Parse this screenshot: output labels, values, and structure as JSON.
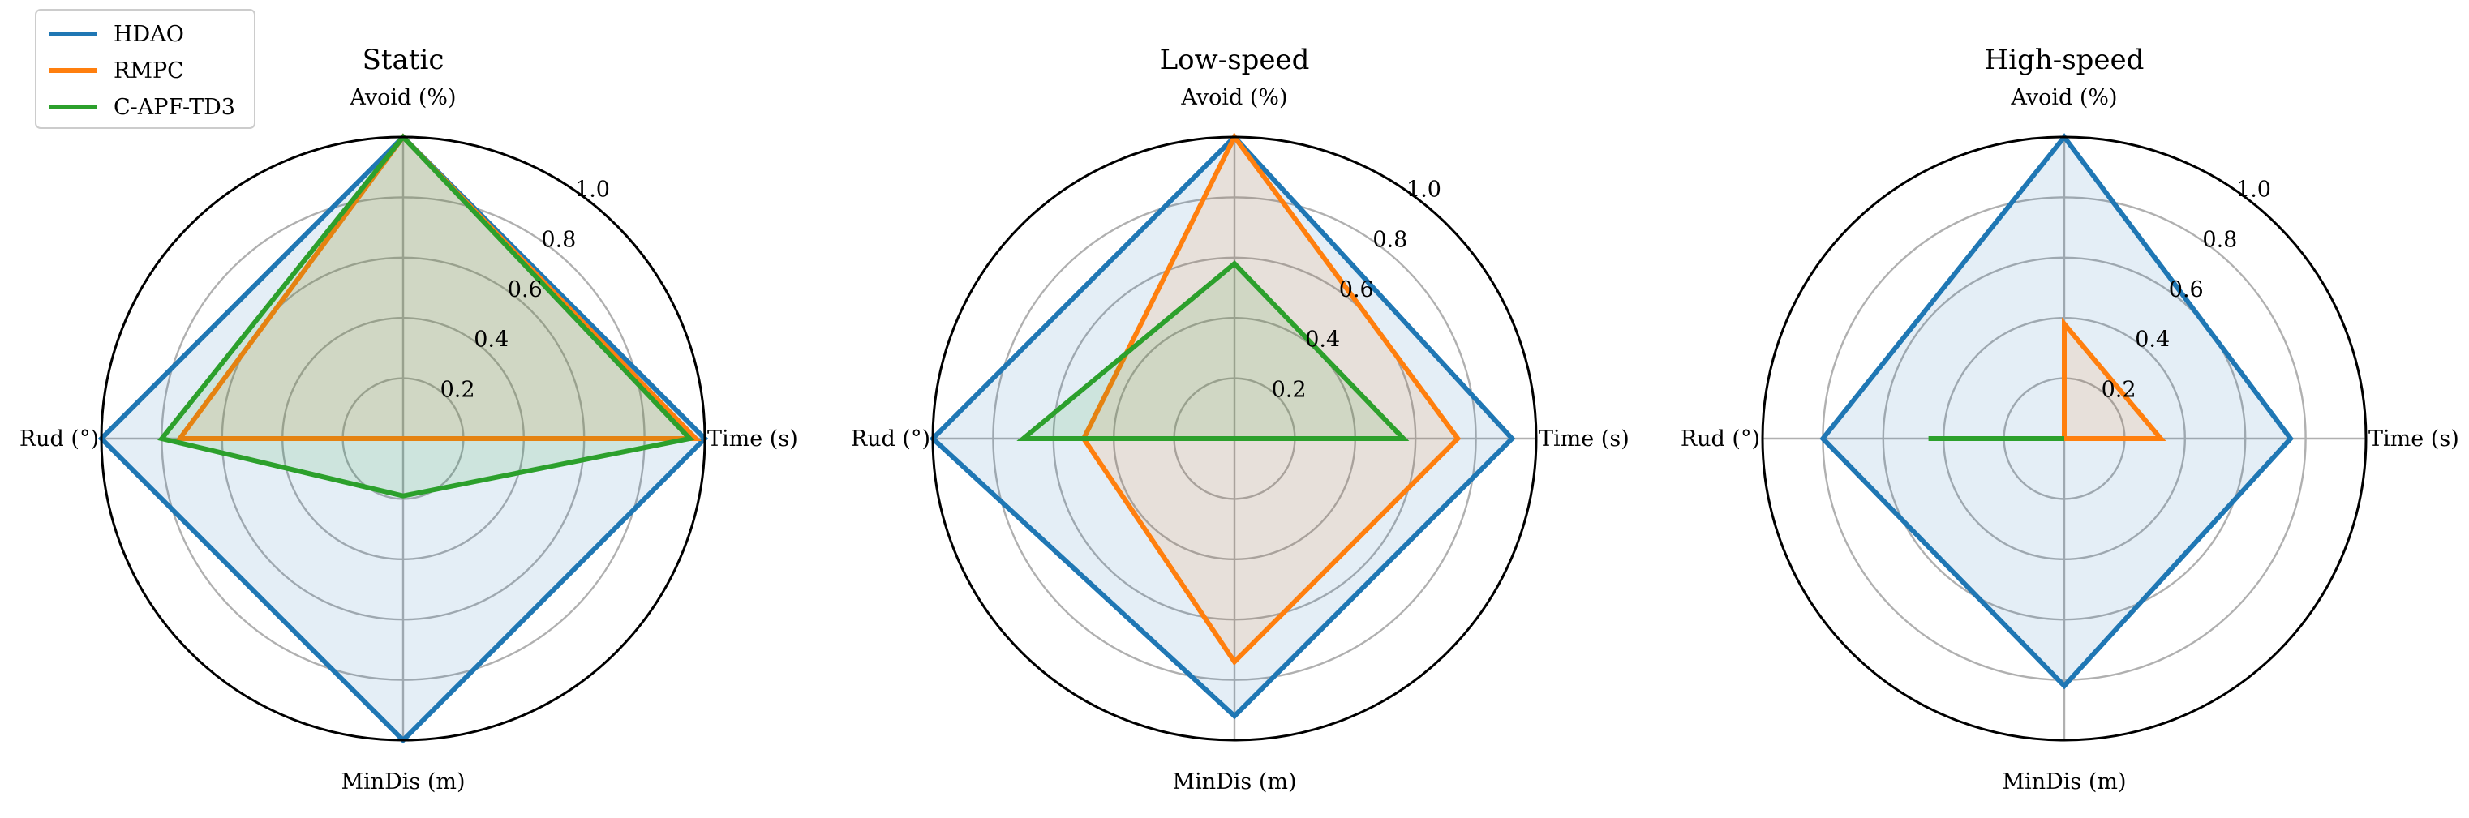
{
  "chart_data": {
    "type": "radar",
    "axes": [
      "Avoid (%)",
      "Time (s)",
      "MinDis (m)",
      "Rud (°)"
    ],
    "rticks": [
      "0.2",
      "0.4",
      "0.6",
      "0.8",
      "1.0"
    ],
    "rlim": [
      0,
      1.0
    ],
    "grid": true,
    "legend": {
      "position": "top-left",
      "entries": [
        "HDAO",
        "RMPC",
        "C-APF-TD3"
      ]
    },
    "series_colors": {
      "HDAO": "#1f77b4",
      "RMPC": "#ff7f0e",
      "C-APF-TD3": "#2ca02c"
    },
    "charts": [
      {
        "title": "Static",
        "series": [
          {
            "name": "HDAO",
            "values": [
              1.0,
              1.0,
              1.0,
              1.0
            ]
          },
          {
            "name": "RMPC",
            "values": [
              1.0,
              0.97,
              0.0,
              0.74
            ]
          },
          {
            "name": "C-APF-TD3",
            "values": [
              1.0,
              0.95,
              0.19,
              0.8
            ]
          }
        ]
      },
      {
        "title": "Low-speed",
        "series": [
          {
            "name": "HDAO",
            "values": [
              1.0,
              0.92,
              0.92,
              1.0
            ]
          },
          {
            "name": "RMPC",
            "values": [
              1.0,
              0.74,
              0.74,
              0.5
            ]
          },
          {
            "name": "C-APF-TD3",
            "values": [
              0.58,
              0.56,
              0.0,
              0.7
            ]
          }
        ]
      },
      {
        "title": "High-speed",
        "series": [
          {
            "name": "HDAO",
            "values": [
              1.0,
              0.75,
              0.82,
              0.8
            ]
          },
          {
            "name": "RMPC",
            "values": [
              0.38,
              0.32,
              0.0,
              0.0
            ]
          },
          {
            "name": "C-APF-TD3",
            "values": [
              0.0,
              0.0,
              0.0,
              0.45
            ]
          }
        ]
      }
    ]
  }
}
